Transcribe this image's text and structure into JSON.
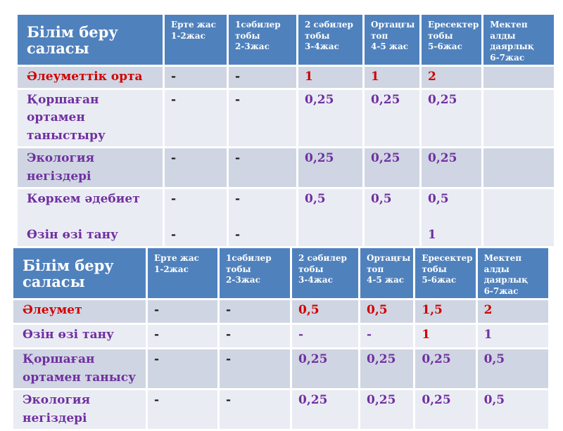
{
  "palette": {
    "header_bg": "#4f81bd",
    "header_text": "#ffffff",
    "band_dark": "#cfd5e2",
    "band_light": "#eaecf4",
    "red": "#d10000",
    "purple": "#7030a0",
    "dark": "#1b1b1b"
  },
  "tables": [
    {
      "title": "upper-schedule-table",
      "headers": [
        "Білім беру саласы",
        "Ерте жас\n1-2жас",
        "1сәбилер\nтобы\n2-3жас",
        "2 сәбилер\nтобы\n3-4жас",
        "Ортаңғы\nтоп\n4-5 жас",
        "Ересектер\nтобы\n5-6жас",
        "Мектеп алды\nдаярлық\n6-7жас"
      ],
      "rows": [
        {
          "label": "Әлеуметтік орта",
          "label_color": "red",
          "cells": [
            "-",
            "-",
            "1",
            "1",
            "2",
            ""
          ],
          "cell_colors": [
            "dark",
            "dark",
            "red",
            "red",
            "red",
            "dark"
          ]
        },
        {
          "label": "Қоршаған ортамен таныстыру",
          "label_color": "purple",
          "cells": [
            "-",
            "-",
            "0,25",
            "0,25",
            "0,25",
            ""
          ],
          "cell_colors": [
            "dark",
            "dark",
            "purple",
            "purple",
            "purple",
            "dark"
          ]
        },
        {
          "label": "Экология негіздері",
          "label_color": "purple",
          "cells": [
            "-",
            "-",
            "0,25",
            "0,25",
            "0,25",
            ""
          ],
          "cell_colors": [
            "dark",
            "dark",
            "purple",
            "purple",
            "purple",
            "dark"
          ]
        },
        {
          "label": "Көркем әдебиет\n\nӨзін өзі тану",
          "label_color": "purple",
          "cells": [
            "-\n\n-",
            "-\n\n-",
            "0,5",
            "0,5",
            "0,5\n\n1",
            ""
          ],
          "cell_colors": [
            "dark",
            "dark",
            "purple",
            "purple",
            "purple",
            "dark"
          ]
        }
      ]
    },
    {
      "title": "lower-schedule-table",
      "headers": [
        "Білім беру саласы",
        "Ерте жас\n1-2жас",
        "1сәбилер\nтобы\n2-3жас",
        "2 сәбилер\nтобы\n3-4жас",
        "Ортаңғы\nтоп\n4-5 жас",
        "Ересектер\nтобы\n5-6жас",
        "Мектеп алды\nдаярлық\n6-7жас"
      ],
      "rows": [
        {
          "label": "Әлеумет",
          "label_color": "red",
          "cells": [
            "-",
            "-",
            "0,5",
            "0,5",
            "1,5",
            "2"
          ],
          "cell_colors": [
            "dark",
            "dark",
            "red",
            "red",
            "red",
            "red"
          ]
        },
        {
          "label": "Өзін өзі тану",
          "label_color": "purple",
          "cells": [
            "-",
            "-",
            "-",
            "-",
            "1",
            "1"
          ],
          "cell_colors": [
            "dark",
            "dark",
            "purple",
            "purple",
            "red",
            "purple"
          ]
        },
        {
          "label": "Қоршаған ортамен танысу",
          "label_color": "purple",
          "cells": [
            "-",
            "-",
            "0,25",
            "0,25",
            "0,25",
            "0,5"
          ],
          "cell_colors": [
            "dark",
            "dark",
            "purple",
            "purple",
            "purple",
            "purple"
          ]
        },
        {
          "label": "Экология негіздері",
          "label_color": "purple",
          "cells": [
            "-",
            "-",
            "0,25",
            "0,25",
            "0,25",
            "0,5"
          ],
          "cell_colors": [
            "dark",
            "dark",
            "purple",
            "purple",
            "purple",
            "purple"
          ]
        }
      ]
    }
  ]
}
